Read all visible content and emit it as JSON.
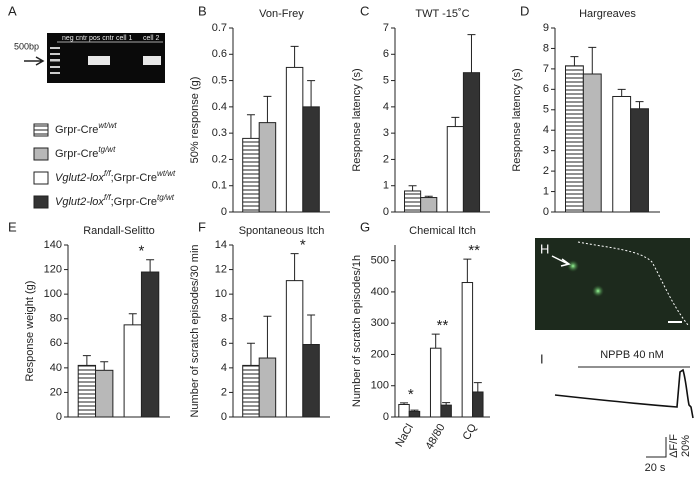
{
  "figure": {
    "panel_letters": [
      "A",
      "B",
      "C",
      "D",
      "E",
      "F",
      "G",
      "H",
      "I"
    ],
    "gel": {
      "size_marker": "500bp",
      "lanes": [
        "neg cntr",
        "pos cntr",
        "cell 1",
        "cell 2"
      ]
    },
    "imaging": {
      "stimulus": "NPPB 40 nM",
      "time_scale": "20 s",
      "response_label": "ΔF/F",
      "response_scale": "20%"
    }
  },
  "legend": [
    {
      "color": "hatch",
      "parts": [
        {
          "text": "Grpr-Cre"
        },
        {
          "text": "wt/wt",
          "sup": true,
          "italic": true
        }
      ]
    },
    {
      "color": "#b8b8b8",
      "parts": [
        {
          "text": "Grpr-Cre"
        },
        {
          "text": "tg/wt",
          "sup": true,
          "italic": true
        }
      ]
    },
    {
      "color": "#ffffff",
      "parts": [
        {
          "text": "Vglut2-lox",
          "italic": true
        },
        {
          "text": "f/f",
          "sup": true,
          "italic": true
        },
        {
          "text": ";Grpr-Cre"
        },
        {
          "text": "wt/wt",
          "sup": true,
          "italic": true
        }
      ]
    },
    {
      "color": "#333333",
      "parts": [
        {
          "text": "Vglut2-lox",
          "italic": true
        },
        {
          "text": "f/f",
          "sup": true,
          "italic": true
        },
        {
          "text": ";Grpr-Cre"
        },
        {
          "text": "tg/wt",
          "sup": true,
          "italic": true
        }
      ]
    }
  ],
  "chart_data": [
    {
      "type": "bar",
      "title": "Von-Frey",
      "y_label": "50% response (g)",
      "ylim": [
        0,
        0.7
      ],
      "yticks": [
        0,
        0.1,
        0.2,
        0.3,
        0.4,
        0.5,
        0.6,
        0.7
      ],
      "series": [
        {
          "color": "hatch",
          "values": [
            0.28
          ],
          "errors": [
            0.09
          ]
        },
        {
          "color": "#b8b8b8",
          "values": [
            0.34
          ],
          "errors": [
            0.1
          ]
        },
        {
          "color": "#ffffff",
          "values": [
            0.55
          ],
          "errors": [
            0.08
          ]
        },
        {
          "color": "#333333",
          "values": [
            0.4
          ],
          "errors": [
            0.1
          ]
        }
      ]
    },
    {
      "type": "bar",
      "title": "TWT -15˚C",
      "y_label": "Response latency (s)",
      "ylim": [
        0,
        7
      ],
      "yticks": [
        0,
        1,
        2,
        3,
        4,
        5,
        6,
        7
      ],
      "series": [
        {
          "color": "hatch",
          "values": [
            0.8
          ],
          "errors": [
            0.2
          ]
        },
        {
          "color": "#b8b8b8",
          "values": [
            0.55
          ],
          "errors": [
            0.05
          ]
        },
        {
          "color": "#ffffff",
          "values": [
            3.25
          ],
          "errors": [
            0.35
          ]
        },
        {
          "color": "#333333",
          "values": [
            5.3
          ],
          "errors": [
            1.45
          ]
        }
      ]
    },
    {
      "type": "bar",
      "title": "Hargreaves",
      "y_label": "Response latency (s)",
      "ylim": [
        0,
        9
      ],
      "yticks": [
        0,
        1,
        2,
        3,
        4,
        5,
        6,
        7,
        8,
        9
      ],
      "series": [
        {
          "color": "hatch",
          "values": [
            7.15
          ],
          "errors": [
            0.45
          ]
        },
        {
          "color": "#b8b8b8",
          "values": [
            6.75
          ],
          "errors": [
            1.3
          ]
        },
        {
          "color": "#ffffff",
          "values": [
            5.65
          ],
          "errors": [
            0.35
          ]
        },
        {
          "color": "#333333",
          "values": [
            5.05
          ],
          "errors": [
            0.35
          ]
        }
      ]
    },
    {
      "type": "bar",
      "title": "Randall-Selitto",
      "y_label": "Response weight (g)",
      "ylim": [
        0,
        140
      ],
      "yticks": [
        0,
        20,
        40,
        60,
        80,
        100,
        120,
        140
      ],
      "annotation": "*",
      "series": [
        {
          "color": "hatch",
          "values": [
            42
          ],
          "errors": [
            8
          ]
        },
        {
          "color": "#b8b8b8",
          "values": [
            38
          ],
          "errors": [
            7
          ]
        },
        {
          "color": "#ffffff",
          "values": [
            75
          ],
          "errors": [
            9
          ]
        },
        {
          "color": "#333333",
          "values": [
            118
          ],
          "errors": [
            10
          ]
        }
      ]
    },
    {
      "type": "bar",
      "title": "Spontaneous Itch",
      "y_label": "Number of scratch episodes/30 min",
      "ylim": [
        0,
        14
      ],
      "yticks": [
        0,
        2,
        4,
        6,
        8,
        10,
        12,
        14
      ],
      "annotation": "*",
      "series": [
        {
          "color": "hatch",
          "values": [
            4.2
          ],
          "errors": [
            1.8
          ]
        },
        {
          "color": "#b8b8b8",
          "values": [
            4.8
          ],
          "errors": [
            3.4
          ]
        },
        {
          "color": "#ffffff",
          "values": [
            11.1
          ],
          "errors": [
            2.2
          ]
        },
        {
          "color": "#333333",
          "values": [
            5.9
          ],
          "errors": [
            2.4
          ]
        }
      ]
    },
    {
      "type": "bar",
      "title": "Chemical Itch",
      "y_label": "Number of scratch episodes/1h",
      "ylim": [
        0,
        550
      ],
      "yticks": [
        0,
        100,
        200,
        300,
        400,
        500
      ],
      "categories": [
        "NaCl",
        "48/80",
        "CQ"
      ],
      "annotations": [
        "*",
        "**",
        "**"
      ],
      "series": [
        {
          "color": "#ffffff",
          "values": [
            40,
            220,
            430
          ],
          "errors": [
            5,
            45,
            75
          ]
        },
        {
          "color": "#333333",
          "values": [
            18,
            38,
            80
          ],
          "errors": [
            4,
            8,
            30
          ]
        }
      ]
    }
  ]
}
